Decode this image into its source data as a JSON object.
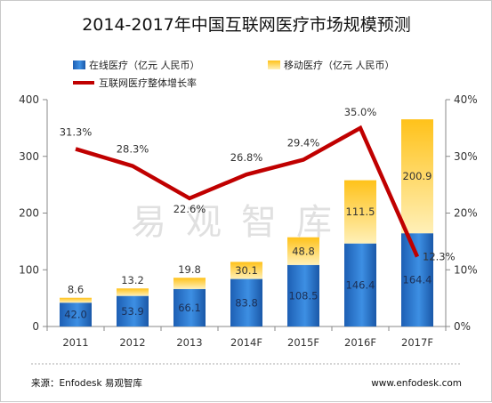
{
  "chart_data": {
    "type": "bar",
    "title": "2014-2017年中国互联网医疗市场规模预测",
    "categories": [
      "2011",
      "2012",
      "2013",
      "2014F",
      "2015F",
      "2016F",
      "2017F"
    ],
    "series": [
      {
        "name": "在线医疗（亿元 人民币）",
        "kind": "stacked-bar",
        "axis": "left",
        "color": "#2a78d2",
        "values": [
          42.0,
          53.9,
          66.1,
          83.8,
          108.5,
          146.4,
          164.4
        ]
      },
      {
        "name": "移动医疗（亿元 人民币）",
        "kind": "stacked-bar",
        "axis": "left",
        "color": "#f6b40e",
        "values": [
          8.6,
          13.2,
          19.8,
          30.1,
          48.8,
          111.5,
          200.9
        ]
      },
      {
        "name": "互联网医疗整体增长率",
        "kind": "line",
        "axis": "right",
        "color": "#c00000",
        "values": [
          31.3,
          28.3,
          22.6,
          26.8,
          29.4,
          35.0,
          12.3
        ]
      }
    ],
    "value_labels": {
      "online": [
        "42.0",
        "53.9",
        "66.1",
        "83.8",
        "108.5",
        "146.4",
        "164.4"
      ],
      "mobile": [
        "8.6",
        "13.2",
        "19.8",
        "30.1",
        "48.8",
        "111.5",
        "200.9"
      ],
      "growth": [
        "31.3%",
        "28.3%",
        "22.6%",
        "26.8%",
        "29.4%",
        "35.0%",
        "12.3%"
      ]
    },
    "ylim": [
      0,
      400
    ],
    "yticks": [
      0,
      100,
      200,
      300,
      400
    ],
    "ytick_labels": [
      "0",
      "100",
      "200",
      "300",
      "400"
    ],
    "y2lim": [
      0,
      40
    ],
    "y2ticks": [
      0,
      10,
      20,
      30,
      40
    ],
    "y2tick_labels": [
      "0%",
      "10%",
      "20%",
      "30%",
      "40%"
    ],
    "grid": false,
    "legend_position": "top"
  },
  "watermark": "易观智库",
  "footer": {
    "source": "来源：Enfodesk 易观智库",
    "url": "www.enfodesk.com"
  }
}
